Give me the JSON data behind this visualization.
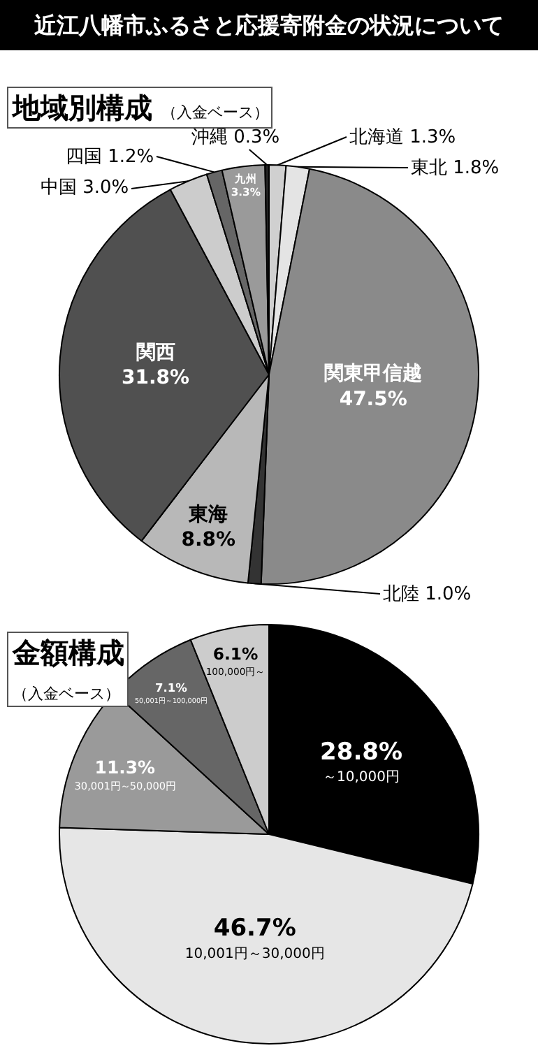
{
  "chart_data": [
    {
      "type": "pie",
      "title": "近江八幡市ふるさと応援寄附金の状況について",
      "subtitle": "地域別構成",
      "annotations": [
        "（入金ベース）"
      ],
      "categories": [
        "北海道",
        "東北",
        "関東甲信越",
        "北陸",
        "東海",
        "関西",
        "中国",
        "四国",
        "九州",
        "沖縄"
      ],
      "values": [
        1.3,
        1.8,
        47.5,
        1.0,
        8.8,
        31.8,
        3.0,
        1.2,
        3.3,
        0.3
      ],
      "value_labels": [
        "1.3%",
        "1.8%",
        "47.5%",
        "1.0%",
        "8.8%",
        "31.8%",
        "3.0%",
        "1.2%",
        "3.3%",
        "0.3%"
      ],
      "colors": [
        "#d0d0d0",
        "#e4e4e4",
        "#8a8a8a",
        "#333333",
        "#b8b8b8",
        "#505050",
        "#cccccc",
        "#666666",
        "#9a9a9a",
        "#222222"
      ]
    },
    {
      "type": "pie",
      "title": "金額構成",
      "subtitle": "（入金ベース）",
      "categories": [
        "～10,000円",
        "10,001円～30,000円",
        "30,001円～50,000円",
        "50,001円～100,000円",
        "100,000円～"
      ],
      "values": [
        28.8,
        46.7,
        11.3,
        7.1,
        6.1
      ],
      "value_labels": [
        "28.8%",
        "46.7%",
        "11.3%",
        "7.1%",
        "6.1%"
      ],
      "colors": [
        "#000000",
        "#e6e6e6",
        "#9a9a9a",
        "#666666",
        "#cccccc"
      ]
    }
  ]
}
